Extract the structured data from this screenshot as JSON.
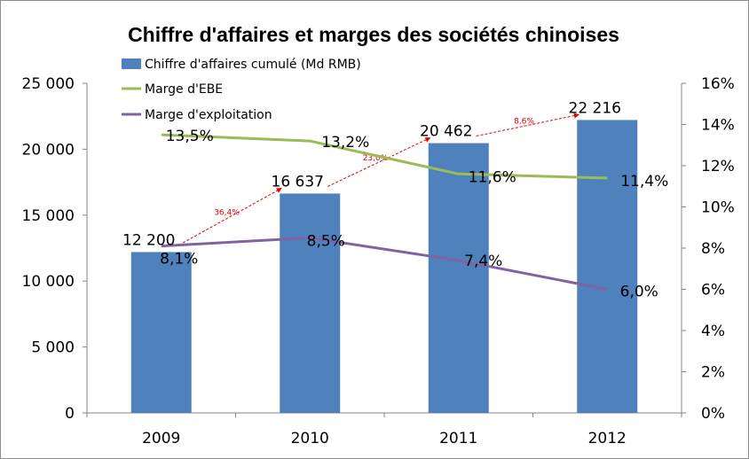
{
  "chart_data": {
    "type": "bar",
    "title": "Chiffre d'affaires et marges des sociétés chinoises",
    "categories": [
      "2009",
      "2010",
      "2011",
      "2012"
    ],
    "series": [
      {
        "name": "Chiffre d'affaires cumulé (Md RMB)",
        "type": "bar",
        "axis": "left",
        "color": "#4f81bd",
        "values": [
          12200,
          16637,
          20462,
          22216
        ],
        "labels": [
          "12 200",
          "16 637",
          "20 462",
          "22 216"
        ]
      },
      {
        "name": "Marge d'EBE",
        "type": "line",
        "axis": "right",
        "color": "#9bbb59",
        "values": [
          13.5,
          13.2,
          11.6,
          11.4
        ],
        "labels": [
          "13,5%",
          "13,2%",
          "11,6%",
          "11,4%"
        ]
      },
      {
        "name": "Marge d'exploitation",
        "type": "line",
        "axis": "right",
        "color": "#8064a2",
        "values": [
          8.1,
          8.5,
          7.4,
          6.0
        ],
        "labels": [
          "8,1%",
          "8,5%",
          "7,4%",
          "6,0%"
        ]
      }
    ],
    "growth_annotations": {
      "color": "#e00000",
      "labels": [
        "36,4%",
        "23,0%",
        "8,6%"
      ]
    },
    "y_left": {
      "range": [
        0,
        25000
      ],
      "ticks": [
        0,
        5000,
        10000,
        15000,
        20000,
        25000
      ],
      "tick_labels": [
        "0",
        "5 000",
        "10 000",
        "15 000",
        "20 000",
        "25 000"
      ]
    },
    "y_right": {
      "range": [
        0,
        16
      ],
      "ticks": [
        0,
        2,
        4,
        6,
        8,
        10,
        12,
        14,
        16
      ],
      "tick_labels": [
        "0%",
        "2%",
        "4%",
        "6%",
        "8%",
        "10%",
        "12%",
        "14%",
        "16%"
      ]
    },
    "grid": false,
    "legend": "top-left"
  }
}
